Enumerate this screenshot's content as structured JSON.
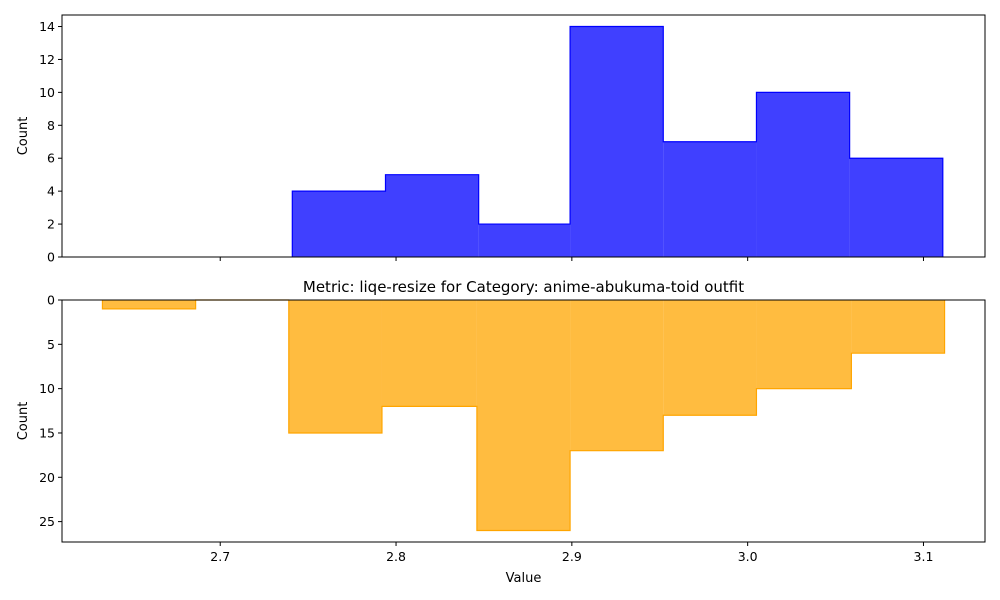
{
  "chart_data": [
    {
      "type": "bar",
      "subtype": "histogram-step-filled",
      "title": "",
      "xlabel": "",
      "ylabel": "Count",
      "color": "#0000ff",
      "bin_edges": [
        2.741,
        2.794,
        2.847,
        2.899,
        2.952,
        3.005,
        3.058,
        3.111
      ],
      "values": [
        4,
        5,
        2,
        14,
        7,
        10,
        6
      ],
      "xlim": [
        2.61,
        3.135
      ],
      "ylim": [
        0,
        14.7
      ],
      "yticks": [
        0,
        2,
        4,
        6,
        8,
        10,
        12,
        14
      ],
      "ytick_labels": [
        "0",
        "2",
        "4",
        "6",
        "8",
        "10",
        "12",
        "14"
      ],
      "inverted_y": false,
      "grid": false
    },
    {
      "type": "bar",
      "subtype": "histogram-step-filled",
      "title": "Metric: liqe-resize for Category: anime-abukuma-toid outfit",
      "xlabel": "Value",
      "ylabel": "Count",
      "color": "#ffa500",
      "bin_edges": [
        2.633,
        2.686,
        2.739,
        2.792,
        2.846,
        2.899,
        2.952,
        3.005,
        3.059,
        3.112
      ],
      "values": [
        1,
        0,
        15,
        12,
        26,
        17,
        13,
        10,
        6
      ],
      "xlim": [
        2.61,
        3.135
      ],
      "ylim": [
        0,
        27.3
      ],
      "yticks": [
        0,
        5,
        10,
        15,
        20,
        25
      ],
      "ytick_labels": [
        "0",
        "5",
        "10",
        "15",
        "20",
        "25"
      ],
      "inverted_y": true,
      "grid": false
    }
  ],
  "xticks": [
    2.7,
    2.8,
    2.9,
    3.0,
    3.1
  ],
  "xtick_labels": [
    "2.7",
    "2.8",
    "2.9",
    "3.0",
    "3.1"
  ]
}
